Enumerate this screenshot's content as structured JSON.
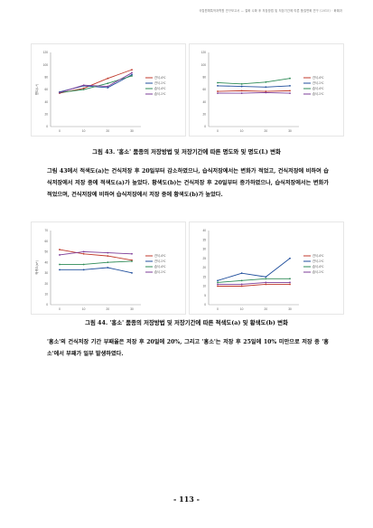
{
  "header": "국립원예특작과학원 연구보고서 — 절화 수확 후 저장방법 및 저장기간에 따른 품질변화 연구 (2015) · 화훼과",
  "figures": [
    {
      "caption": "그림 43. '홍소' 품종의 저장방법 및 저장기간에 따른 명도와 및 명도(L) 변화",
      "chart_data": [
        {
          "type": "line",
          "x": [
            "0",
            "10",
            "20",
            "30"
          ],
          "ylim": [
            0,
            120
          ],
          "yticks": [
            "0",
            "20",
            "40",
            "60",
            "80",
            "100",
            "120"
          ],
          "ylabel": "명도(L*)",
          "legend": "right",
          "series": [
            {
              "name": "건식-4℃",
              "color": "#c0392b",
              "values": [
                54,
                62,
                78,
                92
              ]
            },
            {
              "name": "건식-1℃",
              "color": "#1f4e9c",
              "values": [
                56,
                66,
                63,
                84
              ]
            },
            {
              "name": "습식-4℃",
              "color": "#2e8b57",
              "values": [
                55,
                60,
                70,
                82
              ]
            },
            {
              "name": "습식-1℃",
              "color": "#7d3c98",
              "values": [
                55,
                67,
                65,
                87
              ]
            }
          ]
        },
        {
          "type": "line",
          "x": [
            "0",
            "10",
            "20",
            "30"
          ],
          "ylim": [
            0,
            120
          ],
          "yticks": [
            "0",
            "20",
            "40",
            "60",
            "80",
            "100",
            "120"
          ],
          "ylabel": "",
          "legend": "right",
          "series": [
            {
              "name": "건식-4℃",
              "color": "#c0392b",
              "values": [
                57,
                58,
                57,
                58
              ]
            },
            {
              "name": "건식-1℃",
              "color": "#1f4e9c",
              "values": [
                66,
                65,
                64,
                66
              ]
            },
            {
              "name": "습식-4℃",
              "color": "#2e8b57",
              "values": [
                71,
                69,
                72,
                78
              ]
            },
            {
              "name": "습식-1℃",
              "color": "#7d3c98",
              "values": [
                54,
                54,
                55,
                54
              ]
            }
          ]
        }
      ]
    },
    {
      "caption": "그림 44. '홍소' 품종의 저장방법 및 저장기간에 따른 적색도(a) 및 황색도(b) 변화",
      "chart_data": [
        {
          "type": "line",
          "x": [
            "0",
            "10",
            "20",
            "30"
          ],
          "ylim": [
            0,
            70
          ],
          "yticks": [
            "0",
            "10",
            "20",
            "30",
            "40",
            "50",
            "60",
            "70"
          ],
          "ylabel": "적색도(a*)",
          "legend": "right",
          "series": [
            {
              "name": "건식-4℃",
              "color": "#c0392b",
              "values": [
                52,
                48,
                46,
                42
              ]
            },
            {
              "name": "건식-1℃",
              "color": "#1f4e9c",
              "values": [
                33,
                33,
                35,
                30
              ]
            },
            {
              "name": "습식-4℃",
              "color": "#2e8b57",
              "values": [
                38,
                38,
                40,
                41
              ]
            },
            {
              "name": "습식-1℃",
              "color": "#7d3c98",
              "values": [
                47,
                50,
                49,
                48
              ]
            }
          ]
        },
        {
          "type": "line",
          "x": [
            "0",
            "10",
            "20",
            "30"
          ],
          "ylim": [
            0,
            40
          ],
          "yticks": [
            "0",
            "5",
            "10",
            "15",
            "20",
            "25",
            "30",
            "35",
            "40"
          ],
          "ylabel": "",
          "legend": "right",
          "series": [
            {
              "name": "건식-4℃",
              "color": "#c0392b",
              "values": [
                10,
                10,
                11,
                11
              ]
            },
            {
              "name": "건식-1℃",
              "color": "#1f4e9c",
              "values": [
                13,
                17,
                15,
                25
              ]
            },
            {
              "name": "습식-4℃",
              "color": "#2e8b57",
              "values": [
                12,
                13,
                14,
                14
              ]
            },
            {
              "name": "습식-1℃",
              "color": "#7d3c98",
              "values": [
                11,
                11,
                12,
                12
              ]
            }
          ]
        }
      ]
    }
  ],
  "paragraphs": [
    "그림 43에서 적색도(a)는 건식저장 후 20일부터 감소하였으나, 습식저장에서는 변화가 적었고, 건식저장에 비하여 습식저장에서 저장 중에 적색도(a)가 높았다. 황색도(b)는 건식저장 후 20일부터 증가하였으나, 습식저장에서는 변화가 적었으며, 건식저장에 비하여 습식저장에서 저장 중에 황색도(b)가 높았다.",
    "'홍소'의 건식저장 기간 부패율은 저장 후 20일에 20%, 그리고 '홍소'는 저장 후 25일에 10% 미만으로 저장 중 '홍소'에서 부패가 일부 발생하였다."
  ],
  "page_number": "- 113 -"
}
